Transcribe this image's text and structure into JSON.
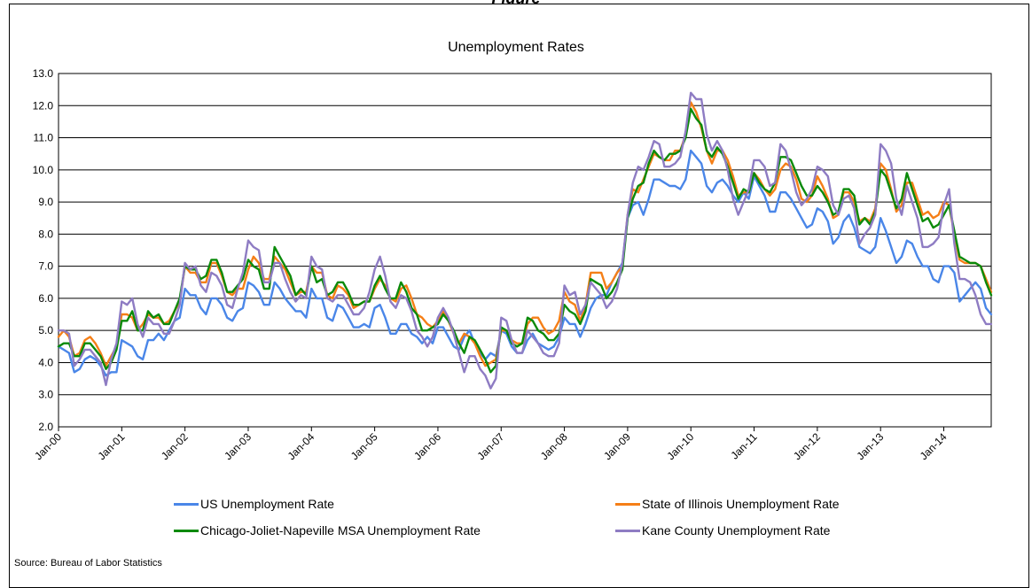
{
  "figure_heading": "Figure",
  "source": "Source: Bureau of Labor Statistics",
  "chart_data": {
    "type": "line",
    "title": "Unemployment Rates",
    "xlabel": "",
    "ylabel": "",
    "ylim": [
      2.0,
      13.0
    ],
    "yticks": [
      "2.0",
      "3.0",
      "4.0",
      "5.0",
      "6.0",
      "7.0",
      "8.0",
      "9.0",
      "10.0",
      "11.0",
      "12.0",
      "13.0"
    ],
    "xticks": [
      "Jan-00",
      "Jan-01",
      "Jan-02",
      "Jan-03",
      "Jan-04",
      "Jan-05",
      "Jan-06",
      "Jan-07",
      "Jan-08",
      "Jan-09",
      "Jan-10",
      "Jan-11",
      "Jan-12",
      "Jan-13",
      "Jan-14"
    ],
    "x_start": "Jan-00",
    "grid": true,
    "legend_position": "bottom",
    "series": [
      {
        "name": "US Unemployment Rate",
        "color": "#4a86e8",
        "values": [
          4.5,
          4.4,
          4.3,
          3.7,
          3.8,
          4.1,
          4.2,
          4.1,
          3.9,
          3.6,
          3.7,
          3.7,
          4.7,
          4.6,
          4.5,
          4.2,
          4.1,
          4.7,
          4.7,
          4.9,
          4.7,
          5.0,
          5.3,
          5.4,
          6.3,
          6.1,
          6.1,
          5.7,
          5.5,
          6.0,
          6.0,
          5.8,
          5.4,
          5.3,
          5.6,
          5.7,
          6.5,
          6.4,
          6.2,
          5.8,
          5.8,
          6.5,
          6.3,
          6.0,
          5.8,
          5.6,
          5.6,
          5.4,
          6.3,
          6.0,
          6.0,
          5.4,
          5.3,
          5.8,
          5.7,
          5.4,
          5.1,
          5.1,
          5.2,
          5.1,
          5.7,
          5.8,
          5.4,
          4.9,
          4.9,
          5.2,
          5.2,
          4.9,
          4.8,
          4.6,
          4.8,
          4.6,
          5.1,
          5.1,
          4.8,
          4.5,
          4.4,
          4.8,
          5.0,
          4.6,
          4.3,
          4.1,
          4.3,
          4.2,
          5.0,
          4.9,
          4.5,
          4.3,
          4.3,
          4.7,
          4.9,
          4.6,
          4.5,
          4.4,
          4.5,
          4.8,
          5.4,
          5.2,
          5.2,
          4.8,
          5.2,
          5.7,
          6.0,
          6.1,
          6.1,
          6.5,
          6.8,
          7.1,
          8.5,
          8.9,
          9.0,
          8.6,
          9.1,
          9.7,
          9.7,
          9.6,
          9.5,
          9.5,
          9.4,
          9.7,
          10.6,
          10.4,
          10.2,
          9.5,
          9.3,
          9.6,
          9.7,
          9.5,
          9.2,
          9.0,
          9.3,
          9.1,
          9.8,
          9.5,
          9.2,
          8.7,
          8.7,
          9.3,
          9.3,
          9.1,
          8.8,
          8.5,
          8.2,
          8.3,
          8.8,
          8.7,
          8.4,
          7.7,
          7.9,
          8.4,
          8.6,
          8.2,
          7.6,
          7.5,
          7.4,
          7.6,
          8.5,
          8.1,
          7.6,
          7.1,
          7.3,
          7.8,
          7.7,
          7.3,
          7.0,
          7.0,
          6.6,
          6.5,
          7.0,
          7.0,
          6.8,
          5.9,
          6.1,
          6.3,
          6.5,
          6.3,
          5.7,
          5.5
        ]
      },
      {
        "name": "State of Illinois Unemployment Rate",
        "color": "#f57f17",
        "values": [
          4.8,
          5.0,
          4.8,
          4.2,
          4.3,
          4.7,
          4.8,
          4.6,
          4.3,
          3.9,
          4.2,
          4.5,
          5.5,
          5.5,
          5.4,
          5.0,
          5.2,
          5.5,
          5.4,
          5.4,
          5.2,
          5.3,
          5.6,
          5.9,
          7.0,
          6.8,
          6.8,
          6.5,
          6.5,
          7.1,
          7.1,
          6.7,
          6.2,
          6.1,
          6.3,
          6.3,
          6.9,
          7.3,
          7.1,
          6.6,
          6.6,
          7.3,
          7.1,
          6.9,
          6.5,
          6.1,
          6.2,
          6.2,
          7.0,
          6.8,
          6.8,
          6.1,
          6.0,
          6.4,
          6.3,
          6.1,
          5.7,
          5.8,
          5.9,
          5.9,
          6.3,
          6.6,
          6.4,
          6.0,
          5.9,
          6.3,
          6.4,
          6.0,
          5.5,
          5.4,
          5.2,
          5.1,
          5.3,
          5.6,
          5.3,
          4.9,
          4.6,
          4.9,
          4.8,
          4.6,
          4.2,
          3.9,
          4.0,
          4.1,
          5.0,
          5.0,
          4.7,
          4.6,
          4.6,
          5.2,
          5.4,
          5.4,
          5.1,
          4.9,
          5.0,
          5.3,
          6.2,
          5.9,
          5.8,
          5.3,
          5.8,
          6.8,
          6.8,
          6.8,
          6.3,
          6.5,
          6.8,
          7.0,
          8.6,
          9.4,
          9.3,
          9.7,
          10.1,
          10.5,
          10.4,
          10.3,
          10.3,
          10.6,
          10.6,
          11.1,
          12.1,
          11.8,
          11.3,
          10.6,
          10.2,
          10.6,
          10.6,
          10.3,
          9.8,
          9.2,
          9.3,
          9.3,
          9.9,
          9.7,
          9.4,
          9.2,
          9.4,
          10.0,
          10.2,
          10.1,
          9.7,
          9.1,
          9.0,
          9.2,
          9.8,
          9.5,
          9.1,
          8.5,
          8.6,
          9.3,
          9.3,
          9.0,
          8.4,
          8.5,
          8.4,
          8.8,
          10.2,
          10.0,
          9.4,
          8.7,
          8.9,
          9.6,
          9.6,
          9.1,
          8.6,
          8.7,
          8.5,
          8.6,
          9.0,
          8.9,
          8.0,
          7.2,
          7.1,
          7.1,
          7.1,
          7.0,
          6.6,
          6.2
        ]
      },
      {
        "name": "Chicago-Joliet-Napeville MSA Unemployment Rate",
        "color": "#0a8a0a",
        "values": [
          4.5,
          4.6,
          4.6,
          4.2,
          4.2,
          4.6,
          4.6,
          4.4,
          4.2,
          3.8,
          4.0,
          4.4,
          5.3,
          5.3,
          5.6,
          5.0,
          5.0,
          5.6,
          5.4,
          5.5,
          5.2,
          5.2,
          5.6,
          6.0,
          7.0,
          6.9,
          6.9,
          6.6,
          6.7,
          7.2,
          7.2,
          6.8,
          6.2,
          6.2,
          6.4,
          6.6,
          7.2,
          7.0,
          6.9,
          6.3,
          6.3,
          7.6,
          7.3,
          7.0,
          6.7,
          6.1,
          6.3,
          6.1,
          7.0,
          6.5,
          6.6,
          6.1,
          6.2,
          6.5,
          6.5,
          6.2,
          5.8,
          5.8,
          5.9,
          5.9,
          6.4,
          6.7,
          6.3,
          6.0,
          6.0,
          6.5,
          6.2,
          5.7,
          5.5,
          5.0,
          5.0,
          5.1,
          5.2,
          5.5,
          5.3,
          5.0,
          4.6,
          4.3,
          4.8,
          4.7,
          4.4,
          4.1,
          3.7,
          3.9,
          5.1,
          5.0,
          4.6,
          4.5,
          4.6,
          5.4,
          5.3,
          5.0,
          4.9,
          4.7,
          4.7,
          4.9,
          5.8,
          5.6,
          5.5,
          5.2,
          5.6,
          6.6,
          6.5,
          6.4,
          6.0,
          6.2,
          6.5,
          6.9,
          8.5,
          9.1,
          9.5,
          9.6,
          10.2,
          10.6,
          10.4,
          10.3,
          10.5,
          10.5,
          10.6,
          11.0,
          11.9,
          11.6,
          11.4,
          10.6,
          10.4,
          10.7,
          10.5,
          10.1,
          9.6,
          9.1,
          9.4,
          9.3,
          9.9,
          9.6,
          9.4,
          9.3,
          9.6,
          10.4,
          10.4,
          10.3,
          9.9,
          9.5,
          9.2,
          9.2,
          9.5,
          9.3,
          9.0,
          8.6,
          8.7,
          9.4,
          9.4,
          9.2,
          8.3,
          8.5,
          8.3,
          8.7,
          10.0,
          9.8,
          9.3,
          8.8,
          9.1,
          9.9,
          9.4,
          8.9,
          8.4,
          8.5,
          8.2,
          8.3,
          8.6,
          8.9,
          8.1,
          7.3,
          7.2,
          7.1,
          7.1,
          7.0,
          6.5,
          6.1
        ]
      },
      {
        "name": "Kane County Unemployment Rate",
        "color": "#8e7cc3",
        "values": [
          5.0,
          5.0,
          4.9,
          3.9,
          4.1,
          4.4,
          4.4,
          4.2,
          4.0,
          3.3,
          4.1,
          4.6,
          5.9,
          5.8,
          6.0,
          5.2,
          4.8,
          5.4,
          5.2,
          5.2,
          4.9,
          4.9,
          5.3,
          5.8,
          7.1,
          6.9,
          7.0,
          6.4,
          6.2,
          6.8,
          6.7,
          6.4,
          5.8,
          5.7,
          6.3,
          6.8,
          7.8,
          7.6,
          7.5,
          6.5,
          6.5,
          7.1,
          7.1,
          6.6,
          6.2,
          5.9,
          6.1,
          6.0,
          7.3,
          7.0,
          6.9,
          6.0,
          5.9,
          6.1,
          6.1,
          5.8,
          5.5,
          5.5,
          5.7,
          6.2,
          6.9,
          7.3,
          6.7,
          5.9,
          5.7,
          6.1,
          6.0,
          5.6,
          5.0,
          4.8,
          4.5,
          4.8,
          5.4,
          5.7,
          5.4,
          4.9,
          4.3,
          3.7,
          4.2,
          4.2,
          3.8,
          3.6,
          3.2,
          3.5,
          5.4,
          5.3,
          4.7,
          4.3,
          4.3,
          5.0,
          4.8,
          4.6,
          4.3,
          4.2,
          4.2,
          4.6,
          6.4,
          6.1,
          6.2,
          5.5,
          5.8,
          6.5,
          6.3,
          6.1,
          5.7,
          5.9,
          6.3,
          7.1,
          8.6,
          9.6,
          10.1,
          10.0,
          10.4,
          10.9,
          10.8,
          10.1,
          10.1,
          10.2,
          10.4,
          11.2,
          12.4,
          12.2,
          12.2,
          11.1,
          10.6,
          10.9,
          10.6,
          10.0,
          9.1,
          8.6,
          9.0,
          9.4,
          10.3,
          10.3,
          10.1,
          9.5,
          9.6,
          10.8,
          10.6,
          10.0,
          9.3,
          8.9,
          9.1,
          9.4,
          10.1,
          10.0,
          9.8,
          8.9,
          8.6,
          9.1,
          9.2,
          8.8,
          7.7,
          8.0,
          8.2,
          8.6,
          10.8,
          10.6,
          10.2,
          9.1,
          8.6,
          9.5,
          9.0,
          8.5,
          7.6,
          7.6,
          7.7,
          7.9,
          8.9,
          9.4,
          7.7,
          6.6,
          6.6,
          6.5,
          6.1,
          5.5,
          5.2,
          5.2
        ]
      }
    ]
  }
}
